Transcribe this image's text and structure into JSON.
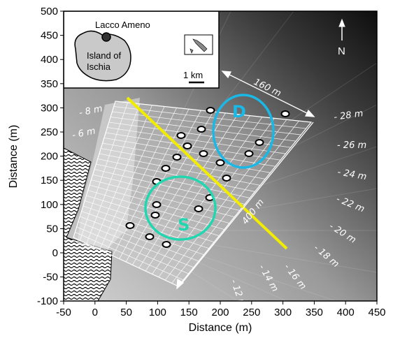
{
  "axes": {
    "x_label": "Distance (m)",
    "y_label": "Distance (m)",
    "x_ticks": [
      "-50",
      "0",
      "50",
      "100",
      "150",
      "200",
      "250",
      "300",
      "350",
      "400",
      "450"
    ],
    "y_ticks": [
      "500",
      "450",
      "400",
      "350",
      "300",
      "250",
      "200",
      "150",
      "100",
      "50",
      "0",
      "-50",
      "-100"
    ]
  },
  "depth_labels": [
    "- 8 m",
    "- 6 m",
    "- 28 m",
    "- 26 m",
    "- 24 m",
    "- 22 m",
    "- 20 m",
    "- 18 m",
    "- 16 m",
    "- 14 m",
    "- 12 m"
  ],
  "scale_labels": {
    "width": "160 m",
    "length": "400 m"
  },
  "zones": {
    "deep": "D",
    "shallow": "S"
  },
  "north": "N",
  "inset": {
    "place": "Lacco Ameno",
    "island_line1": "Island of",
    "island_line2": "Ischia",
    "scale": "1 km"
  },
  "colors": {
    "transect": "#f2ec00",
    "zone_d": "#19b8e6",
    "zone_s": "#22d6b0"
  }
}
